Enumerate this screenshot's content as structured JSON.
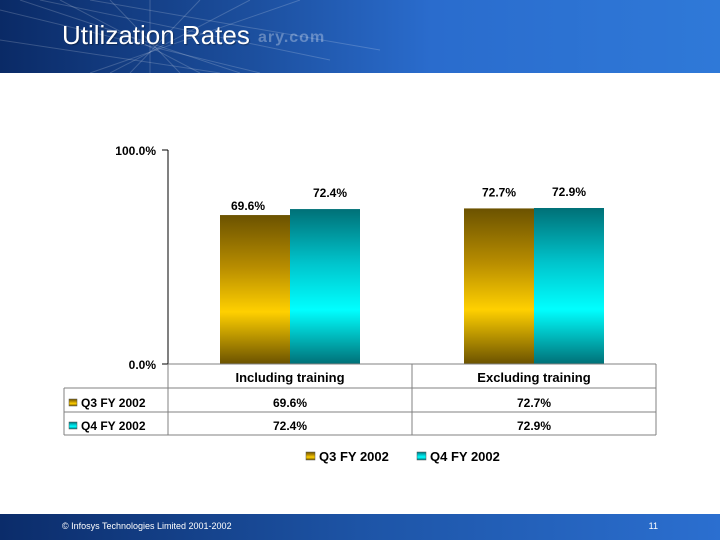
{
  "slide": {
    "title": "Utilization Rates",
    "watermark": "ary.com",
    "footer_text": "© Infosys Technologies Limited 2001-2002",
    "page_number": "11"
  },
  "colors": {
    "q3": "#c79a00",
    "q4": "#00a7b0",
    "header": "#1c4f9e"
  },
  "chart_data": {
    "type": "bar",
    "categories": [
      "Including training",
      "Excluding training"
    ],
    "series": [
      {
        "name": "Q3 FY 2002",
        "values": [
          69.6,
          72.7
        ],
        "labels": [
          "69.6%",
          "72.7%"
        ]
      },
      {
        "name": "Q4 FY 2002",
        "values": [
          72.4,
          72.9
        ],
        "labels": [
          "72.4%",
          "72.9%"
        ]
      }
    ],
    "ylim": [
      0,
      100
    ],
    "yticks": [
      "0.0%",
      "100.0%"
    ],
    "grid": false,
    "legend": "bottom",
    "data_table": true
  }
}
